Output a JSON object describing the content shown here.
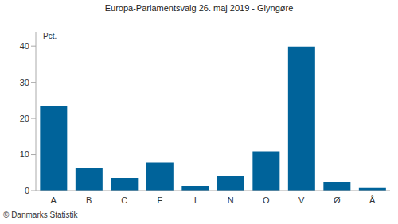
{
  "chart_data": {
    "type": "bar",
    "title": "Europa-Parlamentsvalg 26. maj 2019 - Glyngøre",
    "y_label": "Pct.",
    "annotation": "© Danmarks Statistik",
    "categories": [
      "A",
      "B",
      "C",
      "F",
      "I",
      "N",
      "O",
      "V",
      "Ø",
      "Å"
    ],
    "values": [
      23.5,
      6.2,
      3.5,
      7.8,
      1.3,
      4.2,
      10.9,
      39.9,
      2.4,
      0.7
    ],
    "color": "#00639a",
    "ylim": [
      0,
      44
    ],
    "yticks": [
      0,
      10,
      20,
      30,
      40
    ],
    "grid": false
  }
}
